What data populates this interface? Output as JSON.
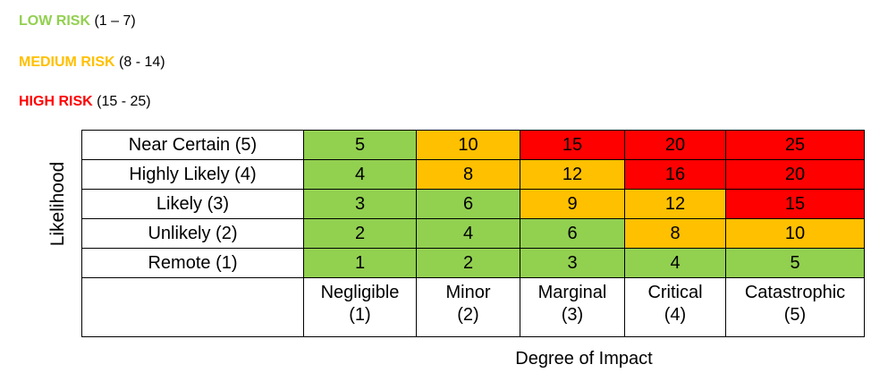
{
  "legend": [
    {
      "name": "LOW RISK",
      "range": "(1 – 7)",
      "color": "#92d050"
    },
    {
      "name": "MEDIUM RISK",
      "range": "(8 - 14)",
      "color": "#ffc000"
    },
    {
      "name": "HIGH RISK",
      "range": "(15 - 25)",
      "color": "#ff0000"
    }
  ],
  "axes": {
    "y_label": "Likelihood",
    "x_label": "Degree of Impact"
  },
  "likelihood_rows": [
    {
      "label": "Near Certain (5)",
      "values": [
        "5",
        "10",
        "15",
        "20",
        "25"
      ],
      "levels": [
        "low",
        "medium",
        "high",
        "high",
        "high"
      ]
    },
    {
      "label": "Highly Likely (4)",
      "values": [
        "4",
        "8",
        "12",
        "16",
        "20"
      ],
      "levels": [
        "low",
        "medium",
        "medium",
        "high",
        "high"
      ]
    },
    {
      "label": "Likely (3)",
      "values": [
        "3",
        "6",
        "9",
        "12",
        "15"
      ],
      "levels": [
        "low",
        "low",
        "medium",
        "medium",
        "high"
      ]
    },
    {
      "label": "Unlikely (2)",
      "values": [
        "2",
        "4",
        "6",
        "8",
        "10"
      ],
      "levels": [
        "low",
        "low",
        "low",
        "medium",
        "medium"
      ]
    },
    {
      "label": "Remote (1)",
      "values": [
        "1",
        "2",
        "3",
        "4",
        "5"
      ],
      "levels": [
        "low",
        "low",
        "low",
        "low",
        "low"
      ]
    }
  ],
  "impact_columns": [
    {
      "label": "Negligible",
      "score": "(1)"
    },
    {
      "label": "Minor",
      "score": "(2)"
    },
    {
      "label": "Marginal",
      "score": "(3)"
    },
    {
      "label": "Critical",
      "score": "(4)"
    },
    {
      "label": "Catastrophic",
      "score": "(5)"
    }
  ],
  "level_colors": {
    "low": "#92d050",
    "medium": "#ffc000",
    "high": "#ff0000"
  }
}
